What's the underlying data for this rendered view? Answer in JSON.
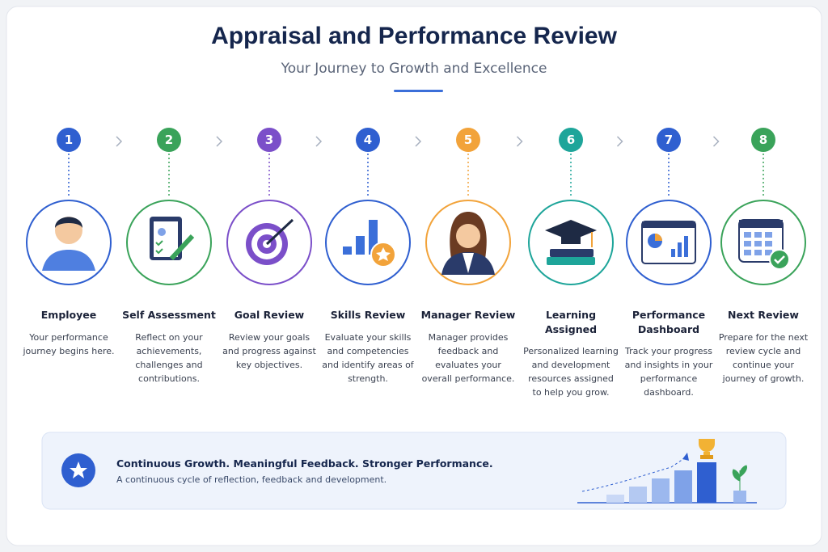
{
  "header": {
    "title": "Appraisal and Performance Review",
    "subtitle": "Your Journey to Growth and Excellence"
  },
  "steps": [
    {
      "number": "1",
      "title": "Employee",
      "description": "Your performance journey begins here."
    },
    {
      "number": "2",
      "title": "Self Assessment",
      "description": "Reflect on your achievements, challenges and contributions."
    },
    {
      "number": "3",
      "title": "Goal Review",
      "description": "Review your goals and progress against key objectives."
    },
    {
      "number": "4",
      "title": "Skills Review",
      "description": "Evaluate your skills and competencies and identify areas of strength."
    },
    {
      "number": "5",
      "title": "Manager Review",
      "description": "Manager provides feedback and evaluates your overall performance."
    },
    {
      "number": "6",
      "title": "Learning Assigned",
      "description": "Personalized learning and development resources assigned to help you grow."
    },
    {
      "number": "7",
      "title": "Performance Dashboard",
      "description": "Track your progress and insights in your performance dashboard."
    },
    {
      "number": "8",
      "title": "Next Review",
      "description": "Prepare for the next review cycle and continue your journey of growth."
    }
  ],
  "banner": {
    "headline": "Continuous Growth. Meaningful Feedback. Stronger Performance.",
    "text": "A continuous cycle of reflection, feedback and development."
  }
}
